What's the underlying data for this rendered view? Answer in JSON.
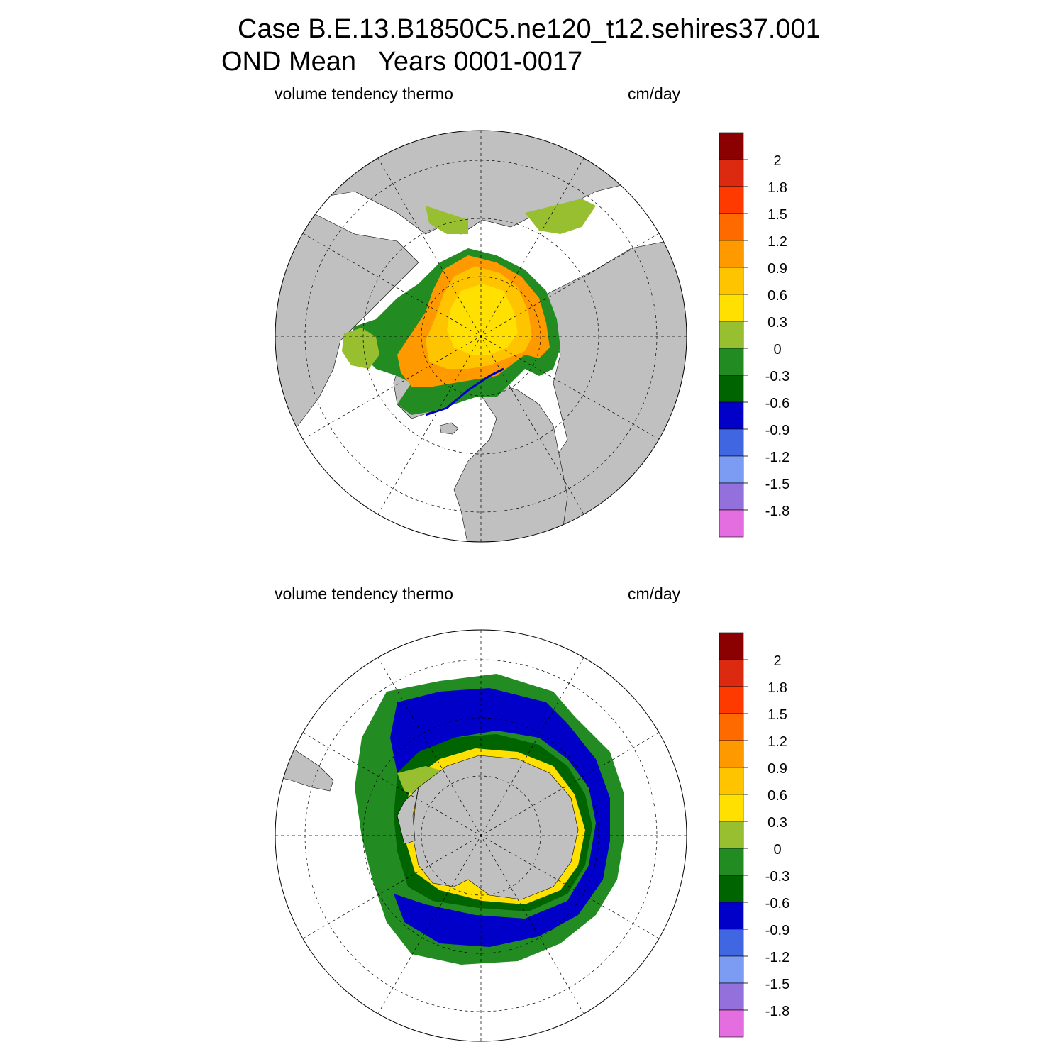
{
  "figure": {
    "title_line1": "Case B.E.13.B1850C5.ne120_t12.sehires37.001",
    "title_line2": "OND Mean   Years 0001-0017"
  },
  "colorbar": {
    "labels": [
      "2",
      "1.8",
      "1.5",
      "1.2",
      "0.9",
      "0.6",
      "0.3",
      "0",
      "-0.3",
      "-0.6",
      "-0.9",
      "-1.2",
      "-1.5",
      "-1.8"
    ],
    "colors": [
      "#8b0000",
      "#dc2a10",
      "#ff3a00",
      "#ff6a00",
      "#ff9900",
      "#ffc400",
      "#ffe000",
      "#98bf30",
      "#228b22",
      "#006400",
      "#0000c8",
      "#4166e1",
      "#7b9cf2",
      "#9370db",
      "#e46ee0"
    ]
  },
  "panels": [
    {
      "id": "north",
      "hemisphere": "Northern Hemisphere",
      "variable_label": "volume tendency thermo",
      "units_label": "cm/day"
    },
    {
      "id": "south",
      "hemisphere": "Southern Hemisphere",
      "variable_label": "volume tendency thermo",
      "units_label": "cm/day"
    }
  ],
  "colors": {
    "land": "#c0c0c0",
    "ocean": "#ffffff",
    "grid": "#000000"
  }
}
